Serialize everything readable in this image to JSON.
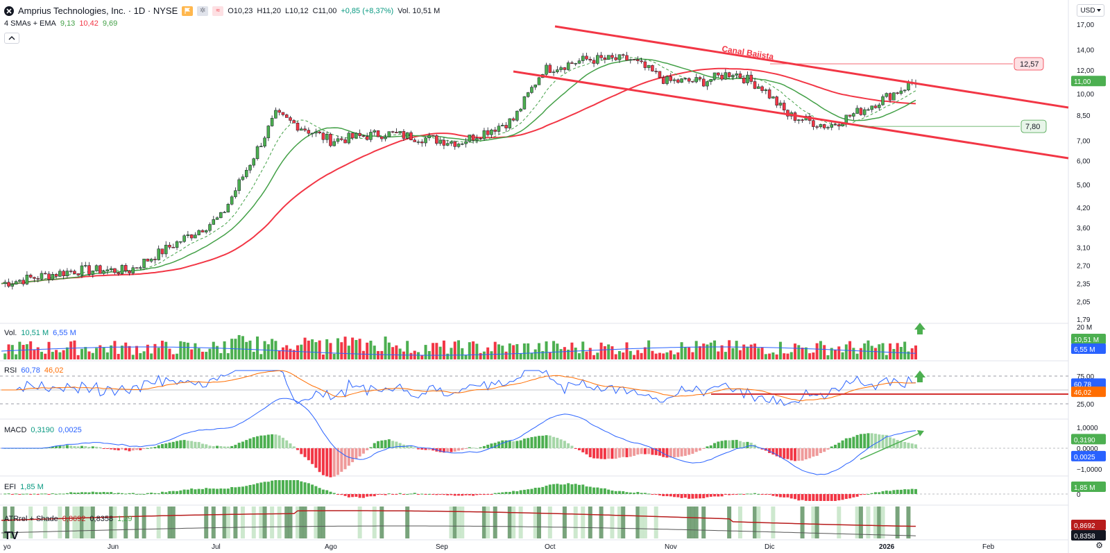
{
  "header": {
    "title": "Amprius Technologies, Inc. · 1D · NYSE",
    "ohlc_open": "O10,23",
    "ohlc_high": "H11,20",
    "ohlc_low": "L10,12",
    "ohlc_close": "C11,00",
    "ohlc_change": "+0,85 (+8,37%)",
    "volume": "Vol. 10,51 M",
    "sma_label": "4 SMAs + EMA",
    "sma_v1": "9,13",
    "sma_v2": "10,42",
    "sma_v3": "9,69",
    "currency": "USD",
    "collapse_icon": "chevron-up-icon"
  },
  "indicators": {
    "vol": {
      "label": "Vol.",
      "v1": "10,51 M",
      "v2": "6,55 M"
    },
    "rsi": {
      "label": "RSI",
      "v1": "60,78",
      "v2": "46,02"
    },
    "macd": {
      "label": "MACD",
      "v1": "0,3190",
      "v2": "0,0025"
    },
    "efi": {
      "label": "EFI",
      "v1": "1,85 M"
    },
    "atr": {
      "label": "ATRrel + Shade",
      "v1": "0,8692",
      "v2": "0,8358",
      "v3": "1,29"
    }
  },
  "annotations": {
    "channel_label": "Canal Bajista",
    "level_high": "12,57",
    "level_low": "7,80"
  },
  "price_axis": [
    "17,00",
    "14,00",
    "12,00",
    "10,00",
    "8,50",
    "7,00",
    "6,00",
    "5,00",
    "4,20",
    "3,60",
    "3,10",
    "2,70",
    "2,35",
    "2,05",
    "1,79"
  ],
  "price_tags": {
    "last": "11,00",
    "vol_last": "10,51 M",
    "vol_ma": "6,55 M",
    "vol_max": "20 M",
    "rsi": "60,78",
    "rsi_ma": "46,02",
    "macd": "0,3190",
    "signal": "0,0025",
    "efi": "1,85 M",
    "atr1": "0,8692",
    "atr2": "0,8358"
  },
  "rsi_axis": [
    "75,00",
    "50,00",
    "25,00"
  ],
  "macd_axis": [
    "1,0000",
    "0,0000",
    "−1,0000"
  ],
  "efi_axis": [
    "0"
  ],
  "time_axis": [
    "yo",
    "Jun",
    "Jul",
    "Ago",
    "Sep",
    "Oct",
    "Nov",
    "Dic",
    "2026",
    "Feb"
  ],
  "colors": {
    "up": "#4caf50",
    "down": "#f23645",
    "upStrong": "#089981",
    "red_line": "#f23645",
    "green_line": "#43a047",
    "blue": "#2962ff",
    "orange": "#ff6d00"
  },
  "chart_data": {
    "type": "candlestick",
    "title": "Amprius Technologies, Inc. · 1D · NYSE",
    "scale": "log",
    "ylim": [
      1.79,
      17.0
    ],
    "x": [
      "yo",
      "Jun",
      "Jul",
      "Ago",
      "Sep",
      "Oct",
      "Nov",
      "Dic",
      "2026"
    ],
    "close_path": [
      {
        "x": "yo",
        "close": 2.35
      },
      {
        "x": "Jun",
        "close": 2.6
      },
      {
        "x": "Jul",
        "close": 3.9
      },
      {
        "x": "Ago",
        "close": 7.0
      },
      {
        "x": "Sep",
        "close": 6.9
      },
      {
        "x": "Oct",
        "close": 13.0
      },
      {
        "x": "Nov",
        "close": 11.0
      },
      {
        "x": "Dic",
        "close": 11.5
      },
      {
        "x": "2026",
        "close": 8.0
      },
      {
        "x": "2026",
        "close": 11.0
      }
    ],
    "levels": [
      {
        "name": "12,57",
        "value": 12.57
      },
      {
        "name": "7,80",
        "value": 7.8
      }
    ],
    "channel_name": "Canal Bajista",
    "sma_values": [
      9.13,
      10.42,
      9.69
    ],
    "rsi": {
      "value": 60.78,
      "ma": 46.02,
      "bands": [
        25,
        50,
        75
      ]
    },
    "macd": {
      "macd": 0.319,
      "signal": 0.0025
    },
    "volume": {
      "last": 10.51,
      "ma": 6.55,
      "max": 20,
      "unit": "M"
    },
    "efi": {
      "value": 1.85,
      "unit": "M"
    },
    "atr": {
      "v1": 0.8692,
      "v2": 0.8358,
      "v3": 1.29
    }
  }
}
